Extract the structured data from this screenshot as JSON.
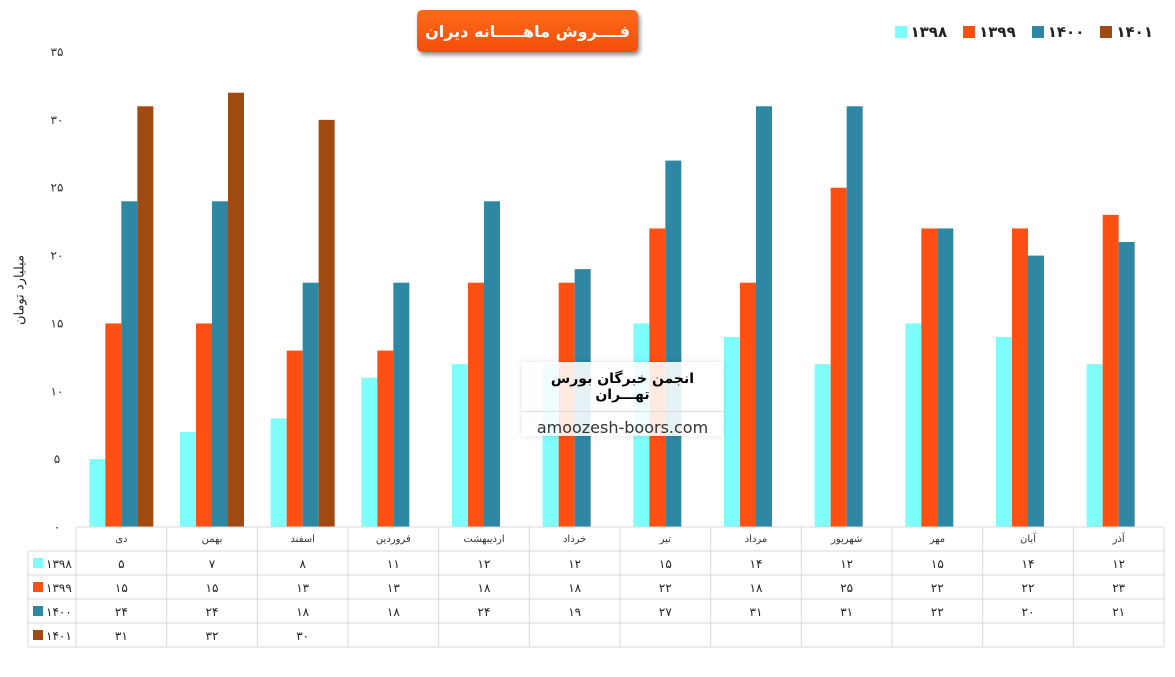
{
  "title": "فــــروش ماهـــــانه دیران",
  "ylabel": "میلیارد تومان",
  "watermark": {
    "title": "انجمن خبرگان بورس تهـــران",
    "url": "amoozesh-boors.com"
  },
  "chart_data": {
    "type": "bar",
    "title": "فــــروش ماهـــــانه دیران",
    "ylabel": "میلیارد تومان",
    "ylim": [
      0,
      35
    ],
    "yticks": [
      0,
      5,
      10,
      15,
      20,
      25,
      30,
      35
    ],
    "ytick_labels": [
      "۰",
      "۵",
      "۱۰",
      "۱۵",
      "۲۰",
      "۲۵",
      "۳۰",
      "۳۵"
    ],
    "grid": false,
    "legend_position": "top-right",
    "categories": [
      "دی",
      "بهمن",
      "اسفند",
      "فروردین",
      "اردیبهشت",
      "خرداد",
      "تیر",
      "مرداد",
      "شهریور",
      "مهر",
      "آبان",
      "آذر"
    ],
    "series": [
      {
        "name": "۱۳۹۸",
        "color": "#7ffcfc",
        "values": [
          5,
          7,
          8,
          11,
          12,
          12,
          15,
          14,
          12,
          15,
          14,
          12
        ],
        "labels": [
          "۵",
          "۷",
          "۸",
          "۱۱",
          "۱۲",
          "۱۲",
          "۱۵",
          "۱۴",
          "۱۲",
          "۱۵",
          "۱۴",
          "۱۲"
        ]
      },
      {
        "name": "۱۳۹۹",
        "color": "#ff5014",
        "values": [
          15,
          15,
          13,
          13,
          18,
          18,
          22,
          18,
          25,
          22,
          22,
          23
        ],
        "labels": [
          "۱۵",
          "۱۵",
          "۱۳",
          "۱۳",
          "۱۸",
          "۱۸",
          "۲۲",
          "۱۸",
          "۲۵",
          "۲۲",
          "۲۲",
          "۲۳"
        ]
      },
      {
        "name": "۱۴۰۰",
        "color": "#2e88a3",
        "values": [
          24,
          24,
          18,
          18,
          24,
          19,
          27,
          31,
          31,
          22,
          20,
          21
        ],
        "labels": [
          "۲۴",
          "۲۴",
          "۱۸",
          "۱۸",
          "۲۴",
          "۱۹",
          "۲۷",
          "۳۱",
          "۳۱",
          "۲۲",
          "۲۰",
          "۲۱"
        ]
      },
      {
        "name": "۱۴۰۱",
        "color": "#a04a12",
        "values": [
          31,
          32,
          30,
          null,
          null,
          null,
          null,
          null,
          null,
          null,
          null,
          null
        ],
        "labels": [
          "۳۱",
          "۳۲",
          "۳۰",
          "",
          "",
          "",
          "",
          "",
          "",
          "",
          "",
          ""
        ]
      }
    ]
  }
}
